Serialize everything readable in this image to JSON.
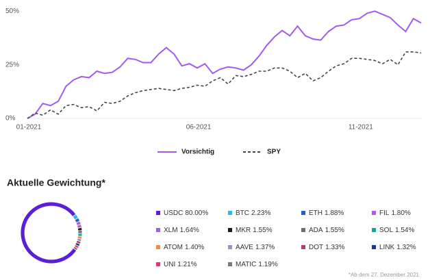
{
  "chart_data": [
    {
      "type": "line",
      "categories": [
        "01-2021",
        null,
        null,
        null,
        null,
        null,
        null,
        null,
        null,
        null,
        null,
        null,
        null,
        null,
        null,
        null,
        null,
        null,
        null,
        null,
        null,
        null,
        "06-2021",
        null,
        null,
        null,
        null,
        null,
        null,
        null,
        null,
        null,
        null,
        null,
        null,
        null,
        null,
        null,
        null,
        null,
        null,
        null,
        null,
        "11-2021",
        null,
        null,
        null,
        null,
        null,
        null,
        null,
        null
      ],
      "series": [
        {
          "name": "Vorsichtig",
          "color": "#a259f0",
          "dash": false,
          "values": [
            0,
            2,
            7,
            6,
            8,
            15,
            18,
            19.5,
            19,
            22,
            21,
            21.5,
            24,
            28,
            27.5,
            26,
            26,
            30,
            33,
            30,
            24.5,
            25.5,
            23.5,
            25.5,
            21,
            23,
            24,
            23.5,
            22.5,
            25,
            29,
            34,
            38,
            41,
            38.5,
            43,
            38.5,
            37,
            36.5,
            40.5,
            43,
            43.5,
            46,
            46.5,
            49,
            50,
            48.5,
            47,
            43.5,
            40.5,
            46.5,
            44.5
          ]
        },
        {
          "name": "SPY",
          "color": "#444444",
          "dash": true,
          "values": [
            0,
            2.5,
            1.5,
            4,
            2,
            6,
            6.5,
            5,
            5.5,
            3.5,
            7.5,
            7,
            8,
            10.5,
            12,
            13,
            13.5,
            14,
            13.5,
            13,
            14,
            14.5,
            15.5,
            15,
            17.5,
            19,
            16,
            20,
            19.5,
            20.5,
            22,
            22,
            23.5,
            23.5,
            22,
            19,
            21,
            17.5,
            19,
            22,
            24.5,
            25.5,
            28,
            28,
            27.5,
            27,
            25.5,
            27.5,
            25,
            31,
            31,
            30.5
          ]
        }
      ],
      "ylim": [
        0,
        52
      ],
      "yticks": [
        {
          "value": 0,
          "label": "0%"
        },
        {
          "value": 25,
          "label": "25%"
        },
        {
          "value": 50,
          "label": "50%"
        }
      ],
      "grid": false
    },
    {
      "type": "pie",
      "title": "Aktuelle Gewichtung*",
      "footnote": "*Ab dem 27. Dezember 2021",
      "donut": true,
      "categories": [
        "USDC",
        "BTC",
        "ETH",
        "FIL",
        "XLM",
        "MKR",
        "ADA",
        "SOL",
        "ATOM",
        "AAVE",
        "DOT",
        "LINK",
        "UNI",
        "MATIC"
      ],
      "values": [
        80.0,
        2.23,
        1.88,
        1.8,
        1.64,
        1.55,
        1.55,
        1.54,
        1.4,
        1.37,
        1.33,
        1.32,
        1.21,
        1.19
      ],
      "value_labels": [
        "80.00%",
        "2.23%",
        "1.88%",
        "1.80%",
        "1.64%",
        "1.55%",
        "1.55%",
        "1.54%",
        "1.40%",
        "1.37%",
        "1.33%",
        "1.32%",
        "1.21%",
        "1.19%"
      ],
      "colors": [
        "#5a1fd6",
        "#2bb8ea",
        "#1e63c8",
        "#b659e0",
        "#9d63e4",
        "#1a1a1a",
        "#6d6a7c",
        "#17a79b",
        "#f48a43",
        "#a08fc0",
        "#b23d6e",
        "#1b3a8e",
        "#e8336b",
        "#7a7a7a"
      ]
    }
  ]
}
